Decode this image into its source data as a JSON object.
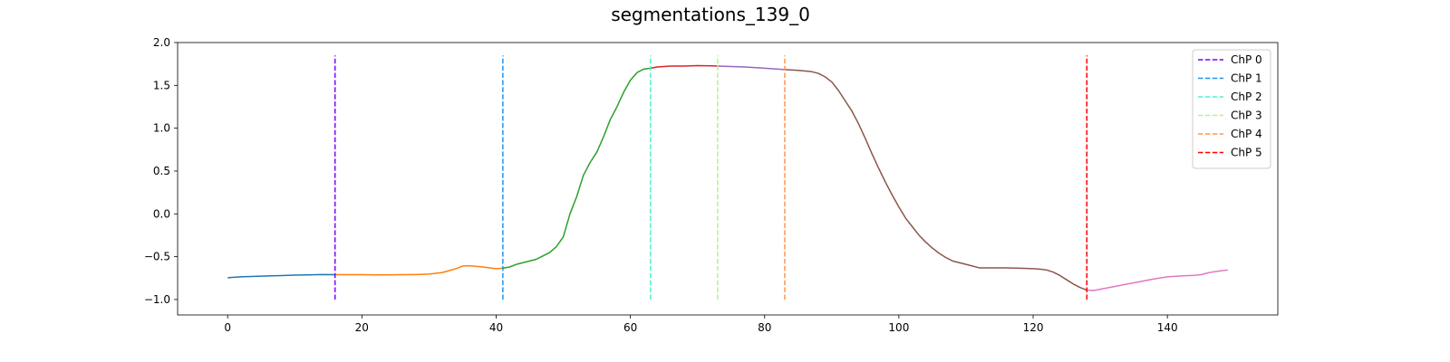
{
  "chart_data": {
    "type": "line",
    "title": "segmentations_139_0",
    "xlabel": "",
    "ylabel": "",
    "xlim": [
      -7.45,
      156.45
    ],
    "ylim": [
      -1.18,
      2.0
    ],
    "xticks": [
      0,
      20,
      40,
      60,
      80,
      100,
      120,
      140
    ],
    "yticks": [
      -1.0,
      -0.5,
      0.0,
      0.5,
      1.0,
      1.5,
      2.0
    ],
    "ytick_labels": [
      "−1.0",
      "−0.5",
      "0.0",
      "0.5",
      "1.0",
      "1.5",
      "2.0"
    ],
    "grid": false,
    "legend_position": "top-right",
    "series": [
      {
        "color": "#1f77b4",
        "x": [
          0,
          2,
          4,
          6,
          8,
          10,
          12,
          14,
          16
        ],
        "y": [
          -0.745,
          -0.735,
          -0.73,
          -0.725,
          -0.72,
          -0.715,
          -0.712,
          -0.708,
          -0.71
        ]
      },
      {
        "color": "#ff7f0e",
        "x": [
          16,
          18,
          20,
          22,
          24,
          26,
          28,
          30,
          32,
          34,
          35,
          36,
          38,
          40,
          41
        ],
        "y": [
          -0.71,
          -0.71,
          -0.71,
          -0.712,
          -0.712,
          -0.71,
          -0.708,
          -0.703,
          -0.685,
          -0.64,
          -0.61,
          -0.605,
          -0.62,
          -0.64,
          -0.635
        ]
      },
      {
        "color": "#2ca02c",
        "x": [
          41,
          42,
          43,
          44,
          46,
          48,
          49,
          50,
          51,
          52,
          53,
          54,
          55,
          56,
          57,
          58,
          59,
          60,
          61,
          62,
          63
        ],
        "y": [
          -0.635,
          -0.62,
          -0.59,
          -0.57,
          -0.53,
          -0.45,
          -0.38,
          -0.27,
          0.0,
          0.2,
          0.45,
          0.6,
          0.72,
          0.9,
          1.1,
          1.25,
          1.42,
          1.56,
          1.65,
          1.69,
          1.7
        ]
      },
      {
        "color": "#d62728",
        "x": [
          63,
          64,
          66,
          68,
          70,
          72,
          73
        ],
        "y": [
          1.7,
          1.715,
          1.725,
          1.725,
          1.73,
          1.728,
          1.725
        ]
      },
      {
        "color": "#9467bd",
        "x": [
          73,
          75,
          77,
          79,
          81,
          83
        ],
        "y": [
          1.725,
          1.72,
          1.715,
          1.705,
          1.695,
          1.685
        ]
      },
      {
        "color": "#8c564b",
        "x": [
          83,
          85,
          87,
          88,
          89,
          90,
          91,
          92,
          93,
          94,
          95,
          96,
          97,
          98,
          99,
          100,
          101,
          102,
          103,
          104,
          105,
          106,
          107,
          108,
          110,
          112,
          114,
          116,
          118,
          120,
          121,
          122,
          123,
          124,
          125,
          126,
          127,
          128
        ],
        "y": [
          1.685,
          1.675,
          1.66,
          1.64,
          1.6,
          1.54,
          1.44,
          1.32,
          1.2,
          1.05,
          0.88,
          0.7,
          0.53,
          0.37,
          0.22,
          0.08,
          -0.05,
          -0.15,
          -0.25,
          -0.33,
          -0.4,
          -0.46,
          -0.51,
          -0.55,
          -0.59,
          -0.63,
          -0.63,
          -0.63,
          -0.635,
          -0.64,
          -0.645,
          -0.655,
          -0.68,
          -0.72,
          -0.77,
          -0.82,
          -0.86,
          -0.89
        ]
      },
      {
        "color": "#e377c2",
        "x": [
          128,
          129,
          130,
          132,
          134,
          136,
          138,
          140,
          142,
          144,
          145,
          146,
          147,
          148,
          149
        ],
        "y": [
          -0.89,
          -0.895,
          -0.88,
          -0.85,
          -0.82,
          -0.79,
          -0.76,
          -0.735,
          -0.725,
          -0.718,
          -0.71,
          -0.69,
          -0.675,
          -0.665,
          -0.655
        ]
      }
    ],
    "changepoints": [
      {
        "name": "ChP 0",
        "x": 16,
        "color": "#8000ff"
      },
      {
        "name": "ChP 1",
        "x": 41,
        "color": "#1996f3"
      },
      {
        "name": "ChP 2",
        "x": 63,
        "color": "#4df3ce"
      },
      {
        "name": "ChP 3",
        "x": 73,
        "color": "#b2f396"
      },
      {
        "name": "ChP 4",
        "x": 83,
        "color": "#ff964f"
      },
      {
        "name": "ChP 5",
        "x": 128,
        "color": "#ff0000"
      }
    ],
    "changepoint_yrange": [
      -1.0,
      1.85
    ]
  }
}
